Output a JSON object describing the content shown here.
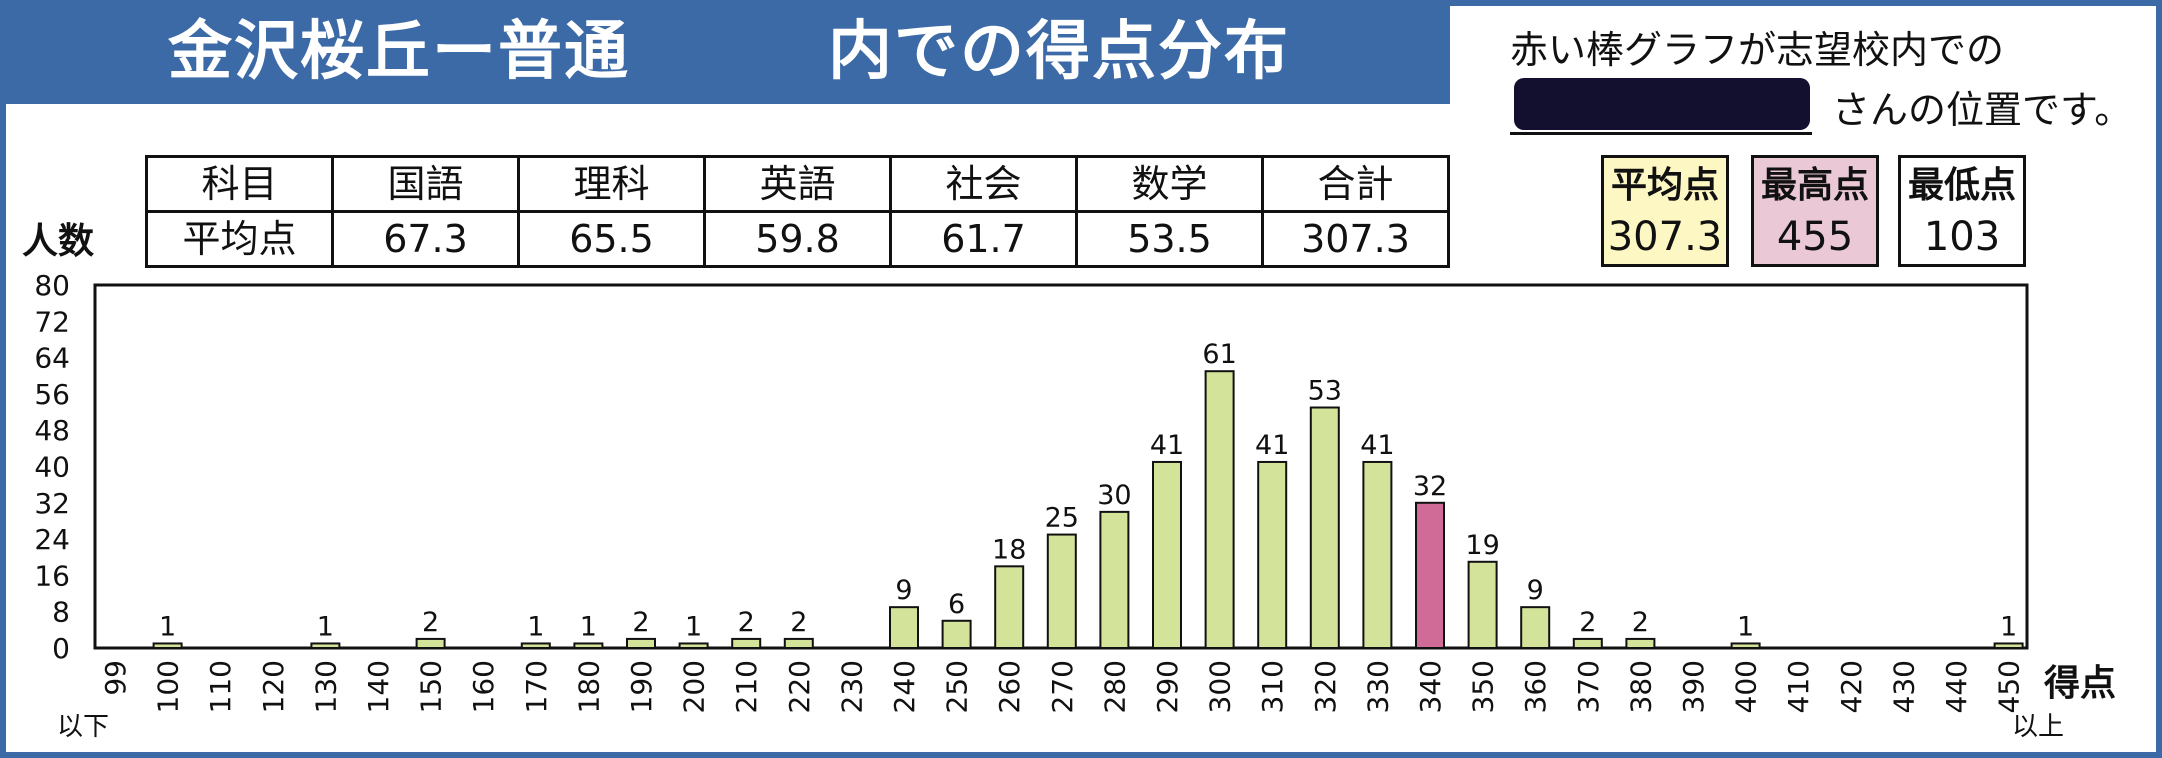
{
  "title": "金沢桜丘ー普通　　　内での得点分布",
  "note_line1": "赤い棒グラフが志望校内での",
  "note_line2": "さんの位置です。",
  "subject_table": {
    "row1_header": "科目",
    "row2_header": "平均点",
    "subjects": [
      "国語",
      "理科",
      "英語",
      "社会",
      "数学",
      "合計"
    ],
    "averages": [
      "67.3",
      "65.5",
      "59.8",
      "61.7",
      "53.5",
      "307.3"
    ]
  },
  "stats": {
    "average_label": "平均点",
    "average_value": "307.3",
    "max_label": "最高点",
    "max_value": "455",
    "min_label": "最低点",
    "min_value": "103"
  },
  "colors": {
    "title_band": "#3b6aa6",
    "bar_default": "#d3e39a",
    "bar_highlight": "#cf6b96",
    "avg_box": "#fdf7c3",
    "max_box": "#eac8d6",
    "min_box": "#ffffff"
  },
  "chart_data": {
    "type": "bar",
    "title": "内での得点分布",
    "xlabel": "得点",
    "ylabel": "人数",
    "ylim": [
      0,
      80
    ],
    "yticks": [
      0,
      8,
      16,
      24,
      32,
      40,
      48,
      56,
      64,
      72,
      80
    ],
    "categories": [
      "99",
      "100",
      "110",
      "120",
      "130",
      "140",
      "150",
      "160",
      "170",
      "180",
      "190",
      "200",
      "210",
      "220",
      "230",
      "240",
      "250",
      "260",
      "270",
      "280",
      "290",
      "300",
      "310",
      "320",
      "330",
      "340",
      "350",
      "360",
      "370",
      "380",
      "390",
      "400",
      "410",
      "420",
      "430",
      "440",
      "450"
    ],
    "values": [
      0,
      1,
      0,
      0,
      1,
      0,
      2,
      0,
      1,
      1,
      2,
      1,
      2,
      2,
      0,
      9,
      6,
      18,
      25,
      30,
      41,
      61,
      41,
      53,
      41,
      32,
      19,
      9,
      2,
      2,
      0,
      1,
      0,
      0,
      0,
      0,
      1
    ],
    "highlight_category": "340",
    "first_tick_suffix": "以下",
    "last_tick_suffix": "以上"
  }
}
